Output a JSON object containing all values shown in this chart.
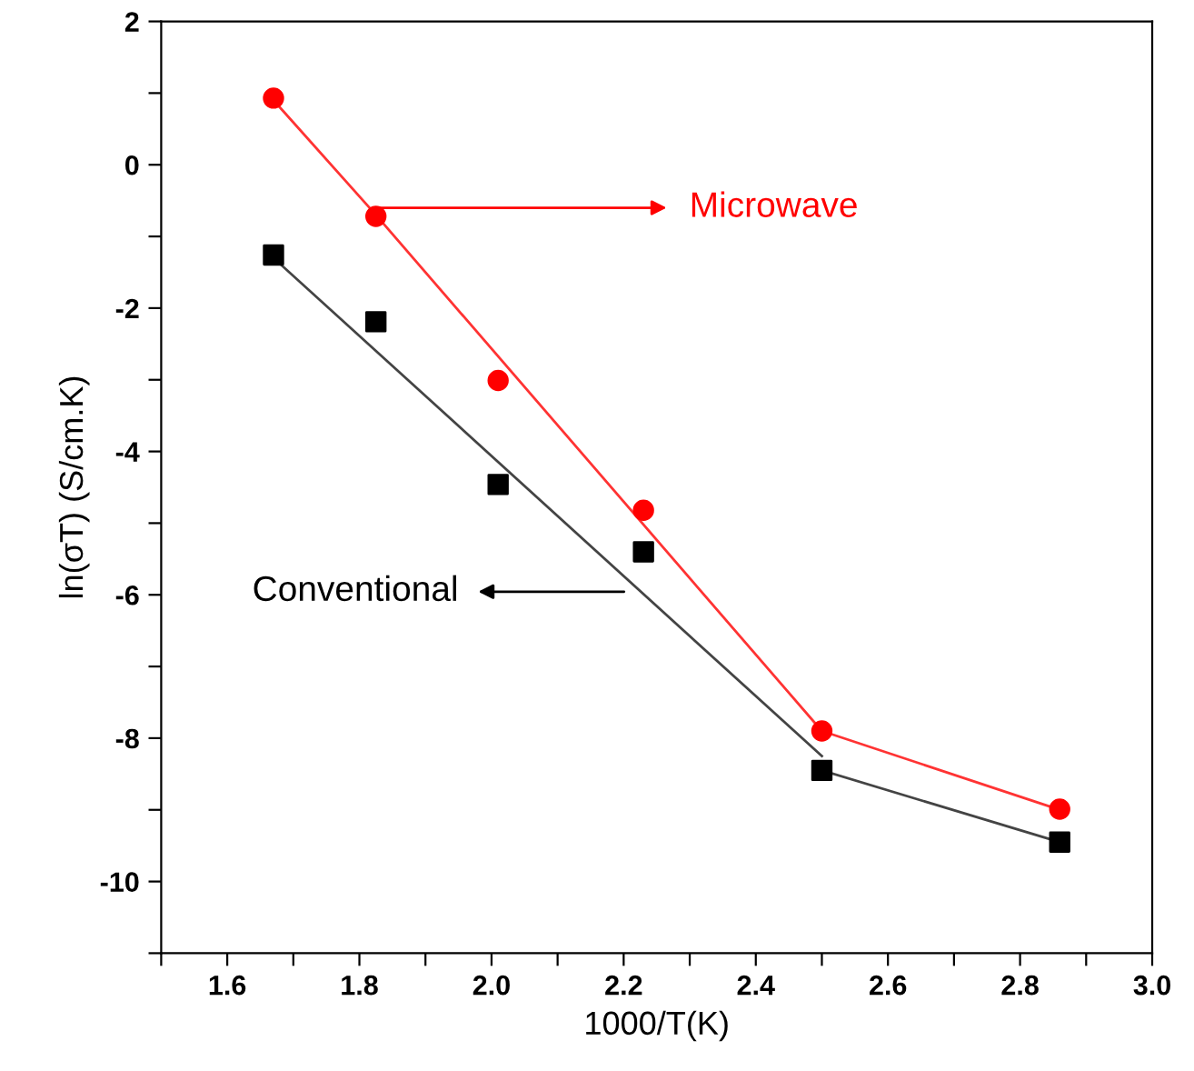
{
  "chart_data": {
    "type": "scatter",
    "xlabel": "1000/T(K)",
    "ylabel": "ln(σT) (S/cm.K)",
    "xlim": [
      1.5,
      3.0
    ],
    "ylim": [
      -11,
      2
    ],
    "xticks": [
      {
        "value": 1.5,
        "label": null
      },
      1.6,
      {
        "value": 1.7,
        "label": null
      },
      1.8,
      {
        "value": 1.9,
        "label": null
      },
      {
        "value": 2.0,
        "label": "2.0"
      },
      {
        "value": 2.1,
        "label": null
      },
      2.2,
      {
        "value": 2.3,
        "label": null
      },
      2.4,
      {
        "value": 2.5,
        "label": null
      },
      2.6,
      {
        "value": 2.7,
        "label": null
      },
      2.8,
      {
        "value": 2.9,
        "label": null
      },
      {
        "value": 3.0,
        "label": "3.0"
      }
    ],
    "yticks": [
      {
        "value": -11,
        "label": null
      },
      -10,
      {
        "value": -9,
        "label": null
      },
      -8,
      {
        "value": -7,
        "label": null
      },
      -6,
      {
        "value": -5,
        "label": null
      },
      -4,
      {
        "value": -3,
        "label": null
      },
      -2,
      {
        "value": -1,
        "label": null
      },
      0,
      {
        "value": 1,
        "label": null
      },
      2
    ],
    "grid": false,
    "legend": false,
    "series": [
      {
        "type": "line",
        "color": "#ff3333",
        "marker": "none",
        "x": [
          1.67,
          1.825,
          2.5,
          2.86
        ],
        "values": [
          0.9,
          -0.7,
          -7.9,
          -9.0
        ]
      },
      {
        "type": "line",
        "color": "#444444",
        "marker": "none",
        "x": [
          1.67,
          2.5
        ],
        "values": [
          -1.3,
          -8.25
        ]
      },
      {
        "type": "line",
        "color": "#444444",
        "marker": "none",
        "x": [
          2.5,
          2.86
        ],
        "values": [
          -8.45,
          -9.45
        ]
      },
      {
        "color": "#ff0000",
        "marker": "circle",
        "x": [
          1.67,
          1.825,
          2.01,
          2.23,
          2.5,
          2.86
        ],
        "values": [
          0.93,
          -0.72,
          -3.01,
          -4.82,
          -7.9,
          -8.99
        ]
      },
      {
        "color": "#000000",
        "marker": "square",
        "x": [
          1.67,
          1.825,
          2.01,
          2.23,
          2.5,
          2.86
        ],
        "values": [
          -1.26,
          -2.19,
          -4.46,
          -5.4,
          -8.45,
          -9.45
        ]
      }
    ],
    "annotations": [
      {
        "text": "Microwave",
        "x": 1.825,
        "y": -0.6
      },
      "Conventional"
    ]
  }
}
